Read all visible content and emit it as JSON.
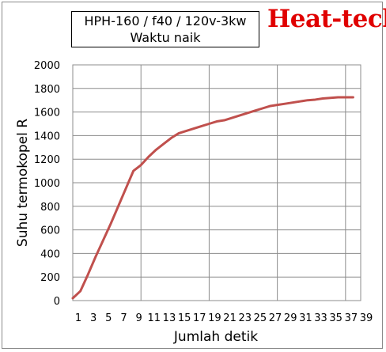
{
  "header": {
    "title_line1": "HPH-160 / f40 / 120v-3kw",
    "title_line2": "Waktu naik",
    "brand": "Heat-tech"
  },
  "colors": {
    "line": "#c0504d",
    "grid": "#8c8c8c",
    "brand": "#e00000"
  },
  "chart_data": {
    "type": "line",
    "xlabel": "Jumlah detik",
    "ylabel": "Suhu termokopel R",
    "xlim": [
      1,
      39
    ],
    "ylim": [
      0,
      2000
    ],
    "x_ticks": [
      1,
      3,
      5,
      7,
      9,
      11,
      13,
      15,
      17,
      19,
      21,
      23,
      25,
      27,
      29,
      31,
      33,
      35,
      37,
      39
    ],
    "y_ticks": [
      0,
      200,
      400,
      600,
      800,
      1000,
      1200,
      1400,
      1600,
      1800,
      2000
    ],
    "grid": true,
    "series": [
      {
        "x": [
          1,
          2,
          3,
          4,
          5,
          6,
          7,
          8,
          9,
          10,
          11,
          12,
          13,
          14,
          15,
          16,
          17,
          18,
          19,
          20,
          21,
          22,
          23,
          24,
          25,
          26,
          27,
          28,
          29,
          30,
          31,
          32,
          33,
          34,
          35,
          36,
          37,
          38
        ],
        "y": [
          20,
          80,
          220,
          370,
          510,
          650,
          800,
          950,
          1100,
          1150,
          1220,
          1280,
          1330,
          1380,
          1420,
          1440,
          1460,
          1480,
          1500,
          1520,
          1530,
          1550,
          1570,
          1590,
          1610,
          1630,
          1650,
          1660,
          1670,
          1680,
          1690,
          1700,
          1705,
          1715,
          1720,
          1725,
          1725,
          1725
        ]
      }
    ]
  }
}
